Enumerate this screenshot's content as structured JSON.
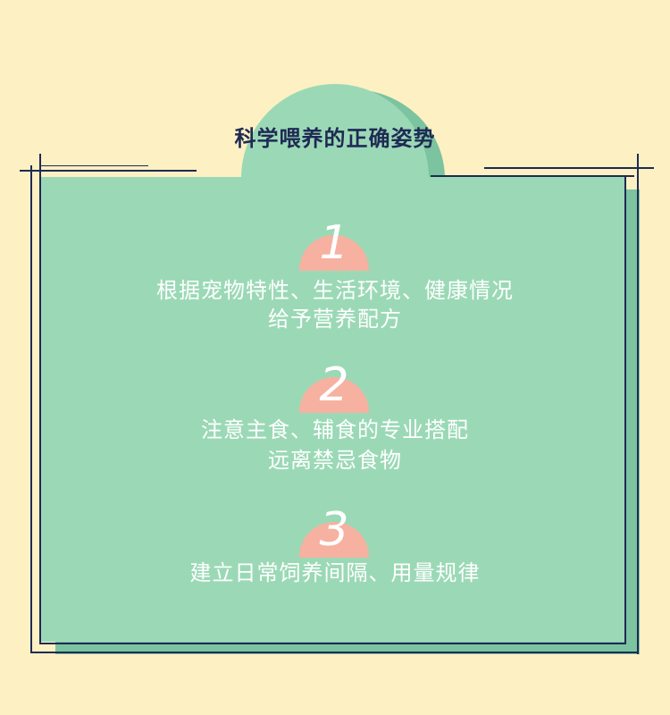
{
  "title": "科学喂养的正确姿势",
  "steps": [
    {
      "number": "1",
      "lines": [
        "根据宠物特性、生活环境、健康情况",
        "给予营养配方"
      ]
    },
    {
      "number": "2",
      "lines": [
        "注意主食、辅食的专业搭配",
        "远离禁忌食物"
      ]
    },
    {
      "number": "3",
      "lines": [
        "建立日常饲养间隔、用量规律"
      ]
    }
  ],
  "colors": {
    "background": "#fdf0c2",
    "card": "#9bd9b6",
    "card_shadow": "#7cc3a0",
    "accent_peach": "#f6b1a0",
    "navy": "#1f2a54",
    "text": "#ffffff"
  }
}
